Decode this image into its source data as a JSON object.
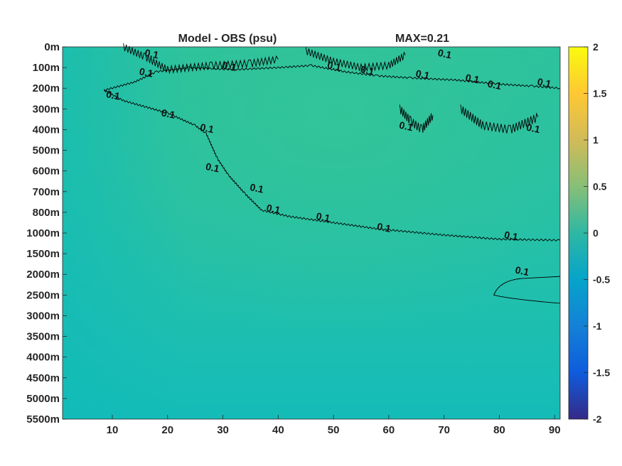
{
  "chart_data": {
    "type": "heatmap",
    "title_left": "Model - OBS (psu)",
    "title_right": "MAX=0.21",
    "x_ticks": [
      10,
      20,
      30,
      40,
      50,
      60,
      70,
      80,
      90
    ],
    "xlim": [
      1,
      91
    ],
    "y_ticks": [
      "0m",
      "100m",
      "200m",
      "300m",
      "400m",
      "500m",
      "600m",
      "700m",
      "800m",
      "1000m",
      "1500m",
      "2000m",
      "2500m",
      "3000m",
      "3500m",
      "4000m",
      "4500m",
      "5000m",
      "5500m"
    ],
    "colorbar": {
      "ticks": [
        2,
        1.5,
        1,
        0.5,
        0,
        -0.5,
        -1,
        -1.5,
        -2
      ],
      "range": [
        -2,
        2
      ],
      "colormap": "parula"
    },
    "contour_level": 0.1,
    "contour_labels": [
      {
        "text": "0.1",
        "x": 17,
        "depth_index": 0.5
      },
      {
        "text": "0.1",
        "x": 16,
        "depth_index": 1.4
      },
      {
        "text": "0.1",
        "x": 31,
        "depth_index": 1.1
      },
      {
        "text": "0.1",
        "x": 50,
        "depth_index": 1.1
      },
      {
        "text": "0.1",
        "x": 56,
        "depth_index": 1.3
      },
      {
        "text": "0.1",
        "x": 66,
        "depth_index": 1.5
      },
      {
        "text": "0.1",
        "x": 70,
        "depth_index": 0.5
      },
      {
        "text": "0.1",
        "x": 75,
        "depth_index": 1.7
      },
      {
        "text": "0.1",
        "x": 79,
        "depth_index": 2.0
      },
      {
        "text": "0.1",
        "x": 88,
        "depth_index": 1.9
      },
      {
        "text": "0.1",
        "x": 10,
        "depth_index": 2.5
      },
      {
        "text": "0.1",
        "x": 20,
        "depth_index": 3.4
      },
      {
        "text": "0.1",
        "x": 27,
        "depth_index": 4.1
      },
      {
        "text": "0.1",
        "x": 28,
        "depth_index": 6.0
      },
      {
        "text": "0.1",
        "x": 36,
        "depth_index": 7.0
      },
      {
        "text": "0.1",
        "x": 39,
        "depth_index": 8.0
      },
      {
        "text": "0.1",
        "x": 48,
        "depth_index": 8.4
      },
      {
        "text": "0.1",
        "x": 63,
        "depth_index": 4.0
      },
      {
        "text": "0.1",
        "x": 59,
        "depth_index": 8.9
      },
      {
        "text": "0.1",
        "x": 82,
        "depth_index": 9.3
      },
      {
        "text": "0.1",
        "x": 84,
        "depth_index": 11.0
      },
      {
        "text": "0.1",
        "x": 86,
        "depth_index": 4.1
      }
    ],
    "colors": {
      "background_field": "#1ebeb0",
      "upper_anomaly": "#2cc39c",
      "contour": "#000000"
    }
  }
}
